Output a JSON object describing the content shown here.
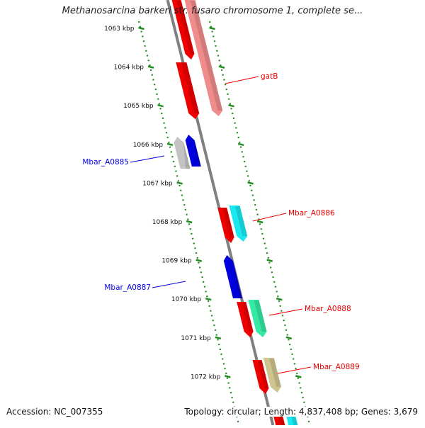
{
  "header": {
    "title": "Methanosarcina barkeri str. fusaro chromosome 1, complete se..."
  },
  "footer": {
    "accession": "Accession: NC_007355",
    "summary": "Topology: circular; Length: 4,837,408 bp; Genes: 3,679"
  },
  "ruler": {
    "unit": "kbp",
    "ticks": [
      "1063 kbp",
      "1064 kbp",
      "1065 kbp",
      "1066 kbp",
      "1067 kbp",
      "1068 kbp",
      "1069 kbp",
      "1070 kbp",
      "1071 kbp",
      "1072 kbp"
    ],
    "tick_color": "#228B22"
  },
  "genes": [
    {
      "label": "gatB",
      "strand": "plus",
      "color": "#dd0000"
    },
    {
      "label": "Mbar_A0885",
      "strand": "minus",
      "color": "#0000bb"
    },
    {
      "label": "Mbar_A0886",
      "strand": "plus",
      "color": "#dd0000"
    },
    {
      "label": "Mbar_A0887",
      "strand": "minus",
      "color": "#0000bb"
    },
    {
      "label": "Mbar_A0888",
      "strand": "plus",
      "color": "#dd0000"
    },
    {
      "label": "Mbar_A0889",
      "strand": "plus",
      "color": "#dd0000"
    }
  ],
  "colors": {
    "plus_cds": "#ee0000",
    "plus_gene": "#f08080",
    "minus_cds": "#0000dd",
    "minus_gene": "#bdbdbd",
    "cyan": "#00e5ee",
    "green": "#1fe59a",
    "olive": "#c8be82",
    "backbone": "#808080"
  }
}
